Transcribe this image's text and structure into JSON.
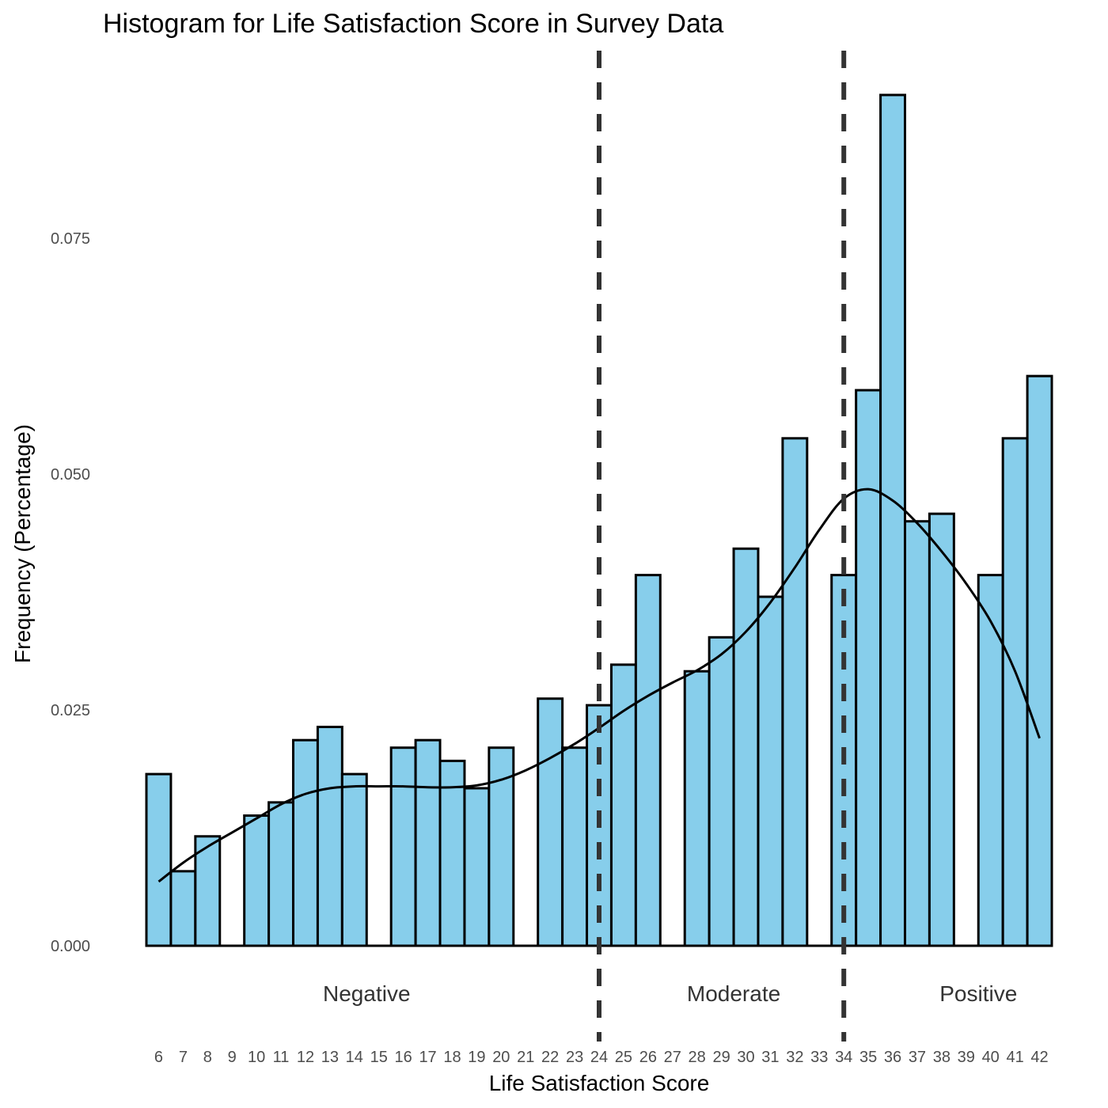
{
  "chart_data": {
    "type": "bar",
    "title": "Histogram for Life Satisfaction Score in Survey Data",
    "xlabel": "Life Satisfaction Score",
    "ylabel": "Frequency (Percentage)",
    "categories": [
      "6",
      "7",
      "8",
      "9",
      "10",
      "11",
      "12",
      "13",
      "14",
      "15",
      "16",
      "17",
      "18",
      "19",
      "20",
      "21",
      "22",
      "23",
      "24",
      "25",
      "26",
      "27",
      "28",
      "29",
      "30",
      "31",
      "32",
      "33",
      "34",
      "35",
      "36",
      "37",
      "38",
      "39",
      "40",
      "41",
      "42"
    ],
    "values": [
      0.0182,
      0.0079,
      0.0116,
      0,
      0.0138,
      0.0152,
      0.0218,
      0.0232,
      0.0182,
      0,
      0.021,
      0.0218,
      0.0196,
      0.0167,
      0.021,
      0,
      0.0262,
      0.021,
      0.0255,
      0.0298,
      0.0393,
      0,
      0.0291,
      0.0327,
      0.0421,
      0.037,
      0.0538,
      0,
      0.0393,
      0.0589,
      0.0902,
      0.045,
      0.0458,
      0,
      0.0393,
      0.0538,
      0.0604
    ],
    "density": [
      [
        6,
        0.0068
      ],
      [
        7,
        0.0088
      ],
      [
        8,
        0.0105
      ],
      [
        9,
        0.012
      ],
      [
        10,
        0.0135
      ],
      [
        11,
        0.015
      ],
      [
        12,
        0.0161
      ],
      [
        13,
        0.0167
      ],
      [
        14,
        0.0169
      ],
      [
        15,
        0.0169
      ],
      [
        16,
        0.0169
      ],
      [
        17,
        0.0168
      ],
      [
        18,
        0.0168
      ],
      [
        19,
        0.017
      ],
      [
        20,
        0.0176
      ],
      [
        21,
        0.0186
      ],
      [
        22,
        0.0199
      ],
      [
        23,
        0.0214
      ],
      [
        24,
        0.0231
      ],
      [
        25,
        0.0249
      ],
      [
        26,
        0.0265
      ],
      [
        27,
        0.0279
      ],
      [
        28,
        0.0292
      ],
      [
        29,
        0.0309
      ],
      [
        30,
        0.0333
      ],
      [
        31,
        0.0364
      ],
      [
        32,
        0.0401
      ],
      [
        33,
        0.0441
      ],
      [
        34,
        0.0474
      ],
      [
        35,
        0.0484
      ],
      [
        36,
        0.0472
      ],
      [
        37,
        0.0448
      ],
      [
        38,
        0.0418
      ],
      [
        39,
        0.0384
      ],
      [
        40,
        0.0344
      ],
      [
        41,
        0.0291
      ],
      [
        42,
        0.022
      ]
    ],
    "xlim": [
      5.5,
      42.5
    ],
    "ylim": [
      0,
      0.0902
    ],
    "yticks": [
      0,
      0.025,
      0.05,
      0.075
    ],
    "ytick_labels": [
      "0.000",
      "0.025",
      "0.050",
      "0.075"
    ],
    "cutoffs": [
      24,
      34
    ],
    "regions": [
      {
        "label": "Negative",
        "x": 14.5
      },
      {
        "label": "Moderate",
        "x": 29.5
      },
      {
        "label": "Positive",
        "x": 39.5
      }
    ],
    "grid": false,
    "colors": {
      "bar_fill": "#87CEEB",
      "bar_stroke": "#000000",
      "density_line": "#000000",
      "cutoff_line": "#333333"
    }
  }
}
